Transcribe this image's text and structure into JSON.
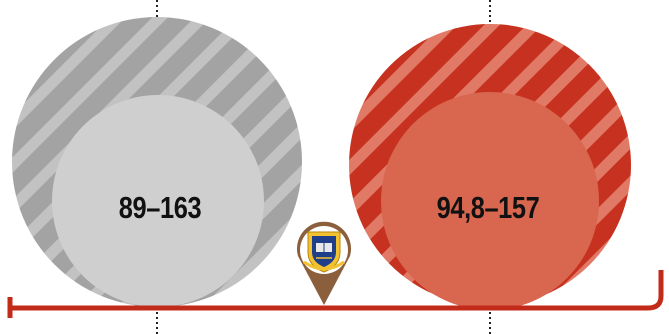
{
  "circles": [
    {
      "id": "left",
      "range_text": "89–163",
      "outer_color": "#a3a3a3",
      "stripe_color": "#c2c2c2",
      "inner_color": "#cfcfcf"
    },
    {
      "id": "right",
      "range_text": "94,8–157",
      "outer_color": "#c7311f",
      "stripe_color": "#e07a66",
      "inner_color": "#d96750"
    }
  ],
  "colors": {
    "axis_line": "#c22a1a",
    "marker_pin": "#8b5e3c",
    "dotted_guides": "#222222"
  },
  "marker": {
    "icon": "university-crest-icon"
  }
}
